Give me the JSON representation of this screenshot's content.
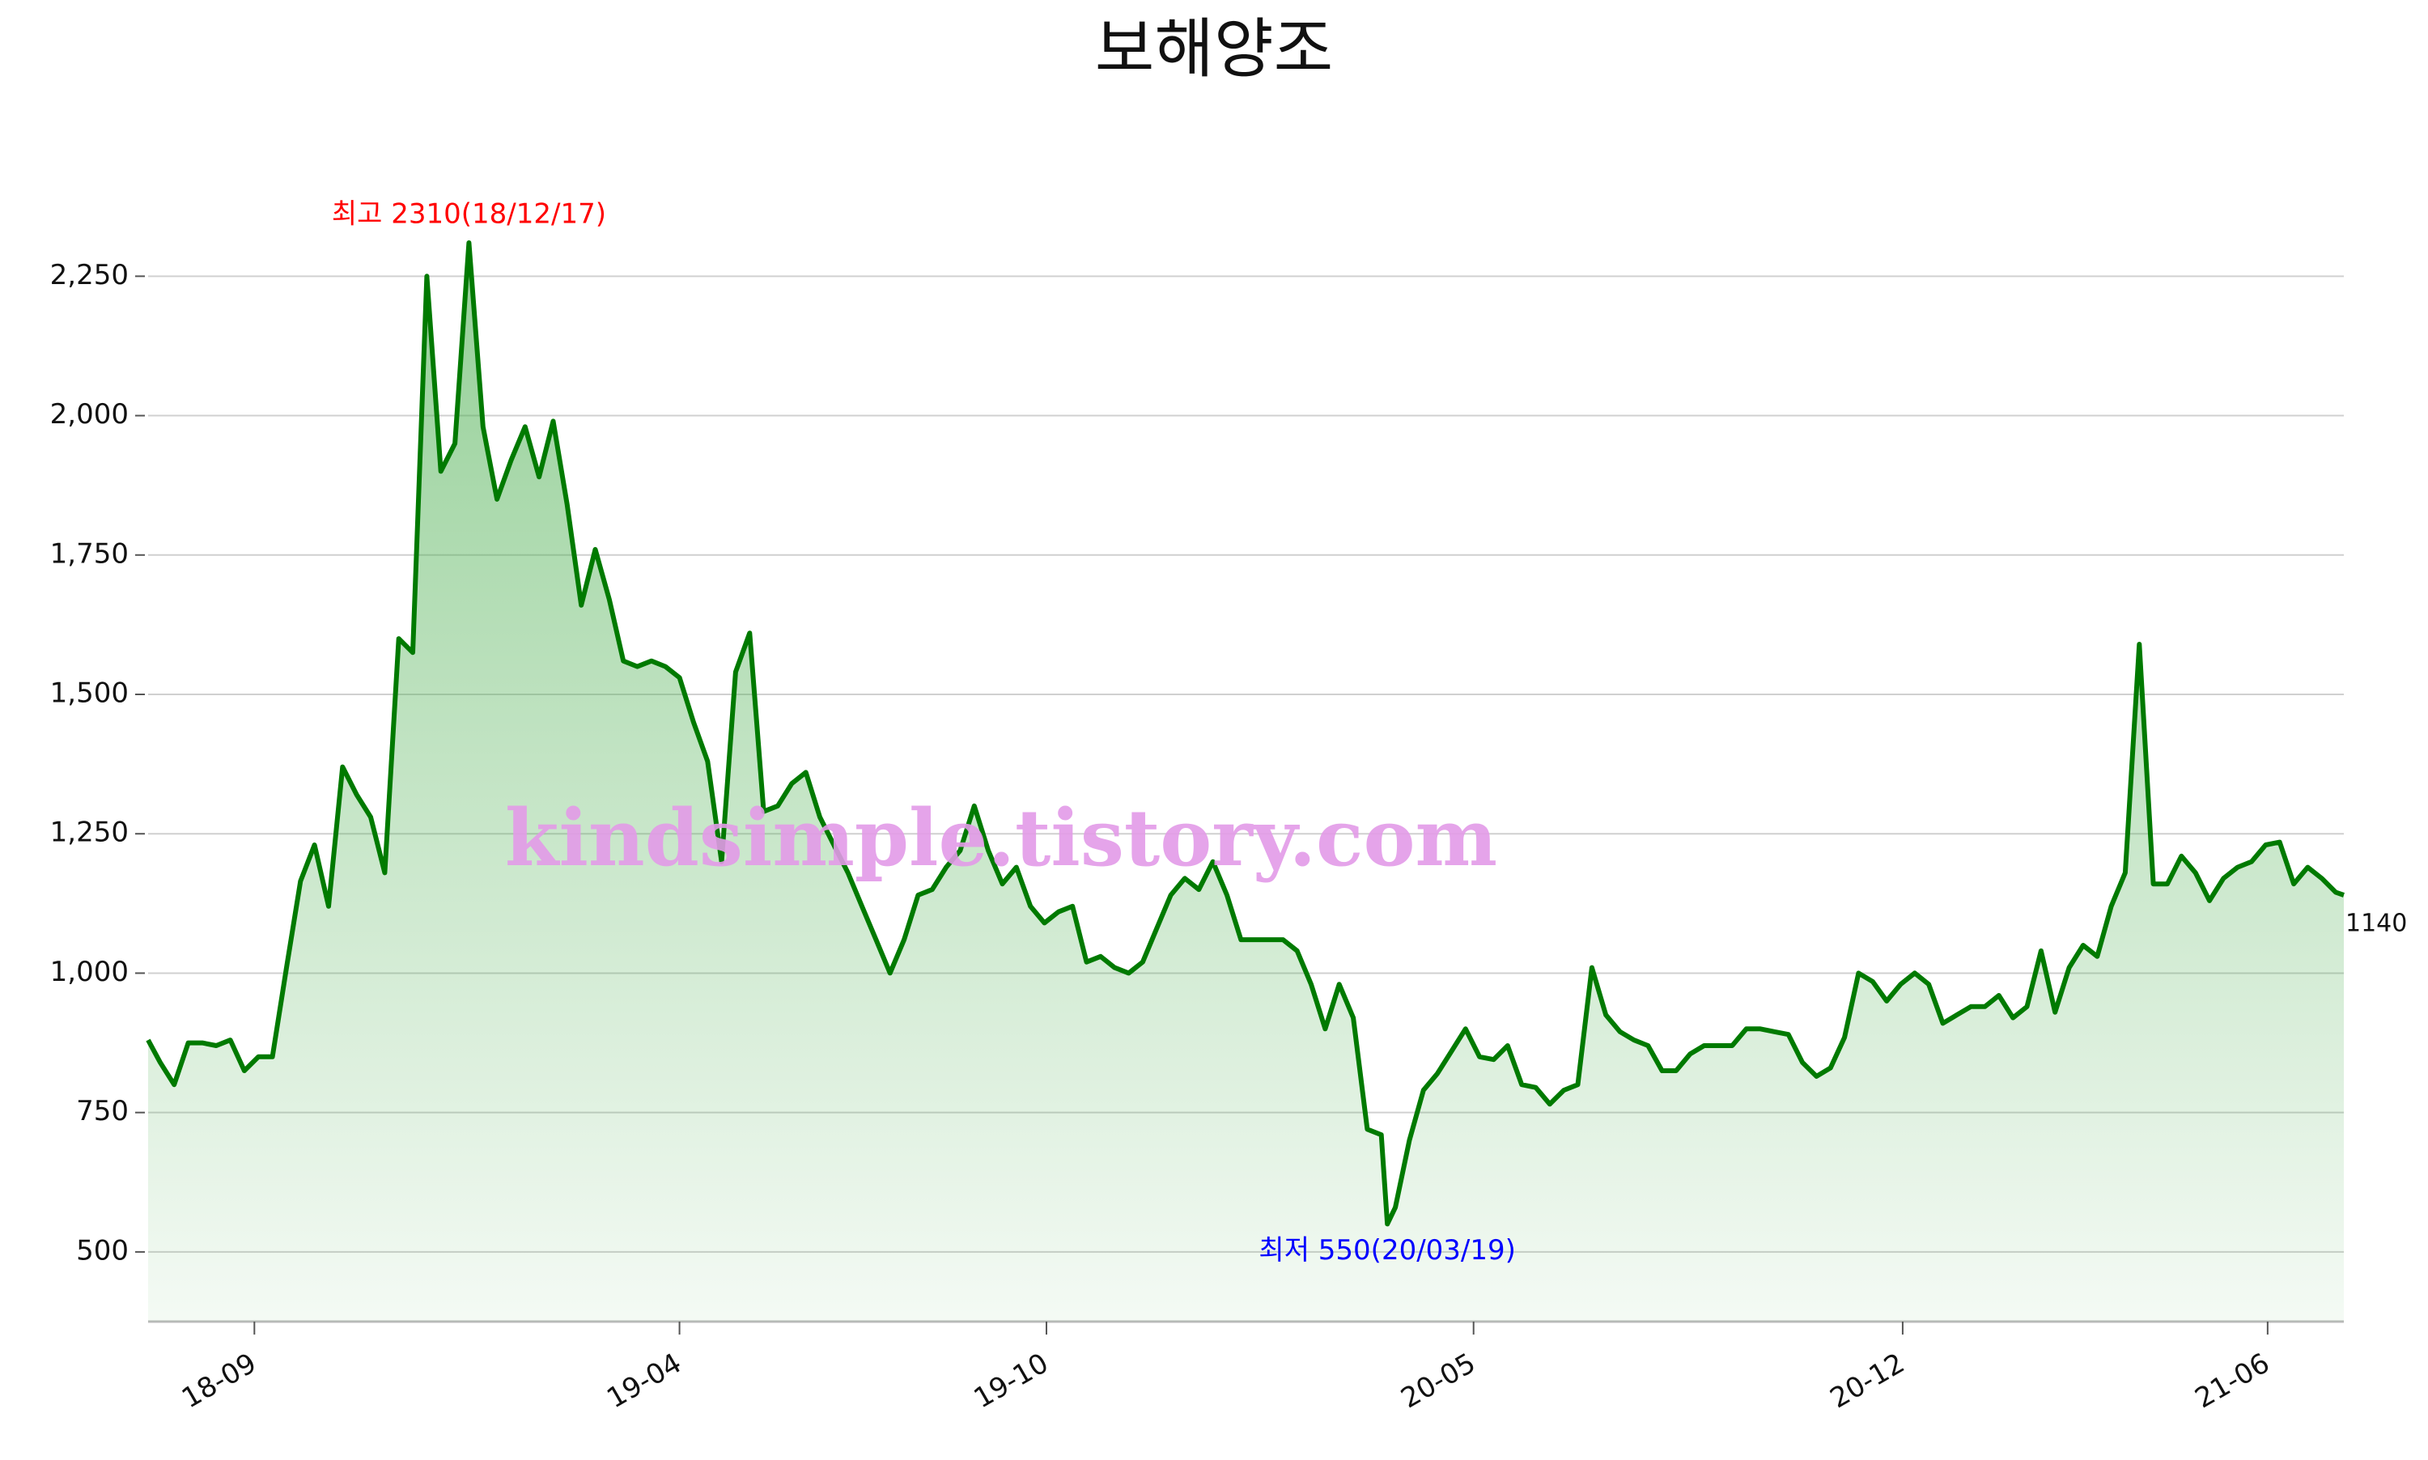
{
  "chart_data": {
    "type": "line",
    "title": "보해양조",
    "color": "#007a00",
    "grid": true,
    "x": [
      "18/07/10",
      "18/07/16",
      "18/07/23",
      "18/07/30",
      "18/08/06",
      "18/08/13",
      "18/08/20",
      "18/08/27",
      "18/09/03",
      "18/09/10",
      "18/09/17",
      "18/09/24",
      "18/10/01",
      "18/10/08",
      "18/10/15",
      "18/10/22",
      "18/10/29",
      "18/11/05",
      "18/11/12",
      "18/11/19",
      "18/11/26",
      "18/12/03",
      "18/12/10",
      "18/12/17",
      "18/12/24",
      "18/12/31",
      "19/01/07",
      "19/01/14",
      "19/01/21",
      "19/01/28",
      "19/02/04",
      "19/02/11",
      "19/02/18",
      "19/02/25",
      "19/03/04",
      "19/03/11",
      "19/03/18",
      "19/03/25",
      "19/04/01",
      "19/04/08",
      "19/04/15",
      "19/04/22",
      "19/04/29",
      "19/05/06",
      "19/05/13",
      "19/05/20",
      "19/05/27",
      "19/06/03",
      "19/06/10",
      "19/06/17",
      "19/06/24",
      "19/07/01",
      "19/07/08",
      "19/07/15",
      "19/07/22",
      "19/07/29",
      "19/08/05",
      "19/08/12",
      "19/08/19",
      "19/08/26",
      "19/09/02",
      "19/09/09",
      "19/09/16",
      "19/09/23",
      "19/09/30",
      "19/10/07",
      "19/10/14",
      "19/10/21",
      "19/10/28",
      "19/11/04",
      "19/11/11",
      "19/11/18",
      "19/11/25",
      "19/12/02",
      "19/12/09",
      "19/12/16",
      "19/12/23",
      "19/12/30",
      "20/01/06",
      "20/01/13",
      "20/01/20",
      "20/01/27",
      "20/02/03",
      "20/02/10",
      "20/02/17",
      "20/02/24",
      "20/03/02",
      "20/03/09",
      "20/03/16",
      "20/03/19",
      "20/03/23",
      "20/03/30",
      "20/04/06",
      "20/04/13",
      "20/04/20",
      "20/04/27",
      "20/05/04",
      "20/05/11",
      "20/05/18",
      "20/05/25",
      "20/06/01",
      "20/06/08",
      "20/06/15",
      "20/06/22",
      "20/06/29",
      "20/07/06",
      "20/07/13",
      "20/07/20",
      "20/07/27",
      "20/08/03",
      "20/08/10",
      "20/08/17",
      "20/08/24",
      "20/08/31",
      "20/09/07",
      "20/09/14",
      "20/09/21",
      "20/09/28",
      "20/10/05",
      "20/10/12",
      "20/10/19",
      "20/10/26",
      "20/11/02",
      "20/11/09",
      "20/11/16",
      "20/11/23",
      "20/11/30",
      "20/12/07",
      "20/12/14",
      "20/12/21",
      "20/12/28",
      "21/01/04",
      "21/01/11",
      "21/01/18",
      "21/01/25",
      "21/02/01",
      "21/02/08",
      "21/02/15",
      "21/02/22",
      "21/03/01",
      "21/03/08",
      "21/03/15",
      "21/03/22",
      "21/03/29",
      "21/04/05",
      "21/04/12",
      "21/04/19",
      "21/04/26",
      "21/05/03",
      "21/05/10",
      "21/05/17",
      "21/05/24",
      "21/05/31",
      "21/06/07",
      "21/06/14",
      "21/06/21",
      "21/06/28",
      "21/07/05",
      "21/07/09"
    ],
    "values": [
      880,
      840,
      800,
      875,
      875,
      870,
      880,
      825,
      850,
      850,
      1010,
      1165,
      1230,
      1120,
      1370,
      1320,
      1280,
      1180,
      1600,
      1575,
      2250,
      1900,
      1950,
      2310,
      1980,
      1850,
      1920,
      1980,
      1890,
      1990,
      1840,
      1660,
      1760,
      1670,
      1560,
      1550,
      1560,
      1550,
      1530,
      1450,
      1380,
      1200,
      1540,
      1610,
      1290,
      1300,
      1340,
      1360,
      1280,
      1230,
      1180,
      1120,
      1060,
      1000,
      1060,
      1140,
      1150,
      1190,
      1220,
      1300,
      1220,
      1160,
      1190,
      1120,
      1090,
      1110,
      1120,
      1020,
      1030,
      1010,
      1000,
      1020,
      1080,
      1140,
      1170,
      1150,
      1200,
      1140,
      1060,
      1060,
      1060,
      1060,
      1040,
      980,
      900,
      980,
      920,
      720,
      710,
      550,
      580,
      700,
      790,
      820,
      860,
      900,
      850,
      845,
      870,
      800,
      795,
      765,
      790,
      800,
      1010,
      925,
      895,
      880,
      870,
      825,
      825,
      855,
      870,
      870,
      870,
      900,
      900,
      895,
      890,
      840,
      815,
      830,
      885,
      1000,
      985,
      950,
      980,
      1000,
      980,
      910,
      925,
      940,
      940,
      960,
      920,
      940,
      1040,
      930,
      1010,
      1050,
      1030,
      1120,
      1180,
      1590,
      1160,
      1160,
      1210,
      1180,
      1130,
      1170,
      1190,
      1200,
      1230,
      1235,
      1160,
      1190,
      1170,
      1145,
      1140
    ],
    "xlim": [
      "18/07/10",
      "21/07/09"
    ],
    "xticks": [
      {
        "value": "18/09/01",
        "label": "18-09"
      },
      {
        "value": "19/04/01",
        "label": "19-04"
      },
      {
        "value": "19/10/01",
        "label": "19-10"
      },
      {
        "value": "20/05/01",
        "label": "20-05"
      },
      {
        "value": "20/12/01",
        "label": "20-12"
      },
      {
        "value": "21/06/01",
        "label": "21-06"
      }
    ],
    "ylim": [
      375,
      2400
    ],
    "yticks": [
      500,
      {
        "value": 750,
        "label": "750"
      },
      {
        "value": 1000,
        "label": "1,000"
      },
      {
        "value": 1250,
        "label": "1,250"
      },
      {
        "value": 1500,
        "label": "1,500"
      },
      {
        "value": 1750,
        "label": "1,750"
      },
      {
        "value": 2000,
        "label": "2,000"
      },
      {
        "value": 2250,
        "label": "2,250"
      }
    ],
    "annotations": [
      {
        "text": "최고 2310(18/12/17)",
        "x": "18/12/17",
        "y": 2310,
        "color": "#ff0000",
        "placement": "above"
      },
      {
        "text": "최저 550(20/03/19)",
        "x": "20/03/19",
        "y": 550,
        "color": "#0000ff",
        "placement": "below"
      }
    ],
    "watermark": "kindsimple.tistory.com"
  }
}
